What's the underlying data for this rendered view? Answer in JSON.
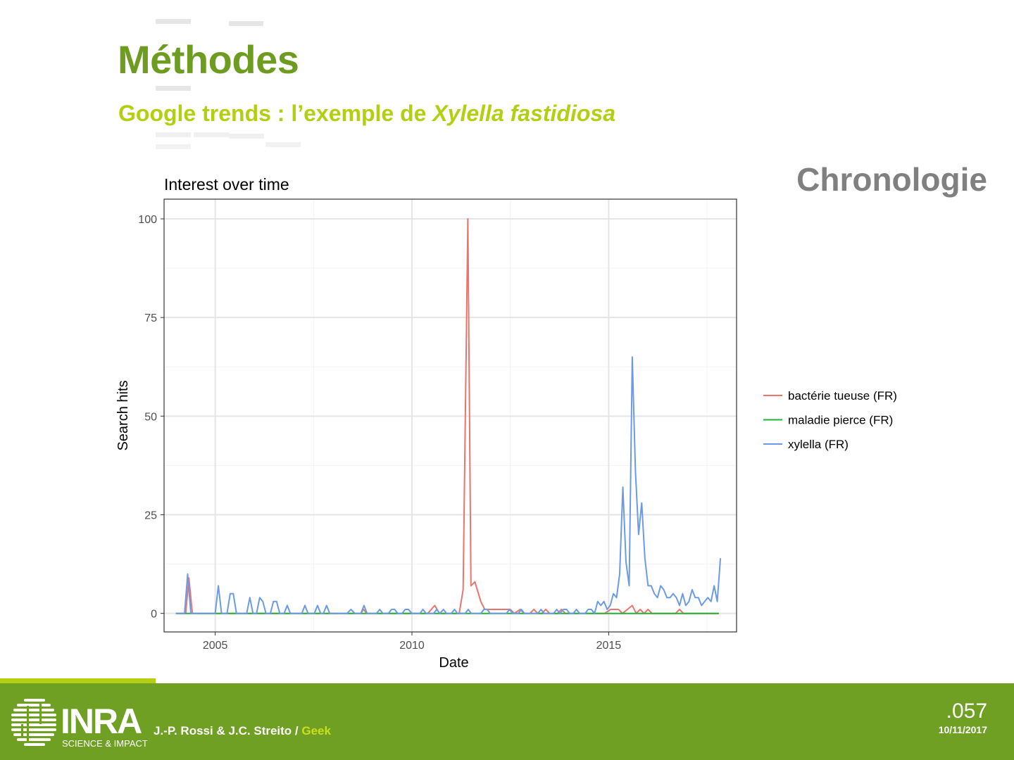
{
  "slide": {
    "title": "Méthodes",
    "subtitle_plain": "Google trends : l’exemple de ",
    "subtitle_italic": "Xylella fastidiosa",
    "section_label": "Chronologie"
  },
  "footer": {
    "logo_text": "INRA",
    "logo_tagline": "SCIENCE & IMPACT",
    "authors": "J.-P. Rossi & J.C. Streito / ",
    "tag": "Geek",
    "page_number": ".057",
    "date": "10/11/2017"
  },
  "colors": {
    "title": "#6e9c21",
    "subtitle": "#b4cf12",
    "footer": "#6f9f23",
    "series_bacterie": "#e8766e",
    "series_maladie": "#22b33a",
    "series_xylella": "#6b9be6"
  },
  "chart_data": {
    "type": "line",
    "title": "Interest over time",
    "xlabel": "Date",
    "ylabel": "Search hits",
    "xlim": [
      2003.7,
      2018.25
    ],
    "ylim": [
      -4.7,
      105
    ],
    "x_ticks": [
      2005,
      2010,
      2015
    ],
    "y_ticks": [
      0,
      25,
      50,
      75,
      100
    ],
    "grid": true,
    "legend_position": "right",
    "series": [
      {
        "name": "bactérie tueuse (FR)",
        "color": "#e8766e",
        "points": [
          [
            2004.0,
            0
          ],
          [
            2004.25,
            0
          ],
          [
            2004.33,
            9
          ],
          [
            2004.42,
            0
          ],
          [
            2008.7,
            0
          ],
          [
            2008.77,
            1
          ],
          [
            2008.85,
            0
          ],
          [
            2010.4,
            0
          ],
          [
            2010.58,
            2
          ],
          [
            2010.7,
            0
          ],
          [
            2011.2,
            0
          ],
          [
            2011.3,
            6
          ],
          [
            2011.42,
            100
          ],
          [
            2011.5,
            7
          ],
          [
            2011.6,
            8
          ],
          [
            2011.75,
            3
          ],
          [
            2011.85,
            1
          ],
          [
            2012.5,
            1
          ],
          [
            2012.6,
            0
          ],
          [
            2012.75,
            1
          ],
          [
            2012.85,
            0
          ],
          [
            2013.0,
            0
          ],
          [
            2013.1,
            1
          ],
          [
            2013.2,
            0
          ],
          [
            2013.3,
            0
          ],
          [
            2013.4,
            1
          ],
          [
            2013.5,
            0
          ],
          [
            2013.7,
            0
          ],
          [
            2013.8,
            1
          ],
          [
            2013.9,
            0
          ],
          [
            2014.9,
            0
          ],
          [
            2015.05,
            1
          ],
          [
            2015.25,
            1
          ],
          [
            2015.35,
            0
          ],
          [
            2015.6,
            2
          ],
          [
            2015.7,
            0
          ],
          [
            2015.8,
            1
          ],
          [
            2015.9,
            0
          ],
          [
            2016.0,
            1
          ],
          [
            2016.1,
            0
          ],
          [
            2016.7,
            0
          ],
          [
            2016.8,
            1
          ],
          [
            2016.9,
            0
          ],
          [
            2017.8,
            0
          ]
        ]
      },
      {
        "name": "maladie pierce (FR)",
        "color": "#22b33a",
        "points": [
          [
            2004.0,
            0
          ],
          [
            2017.8,
            0
          ]
        ]
      },
      {
        "name": "xylella (FR)",
        "color": "#6b9be6",
        "points": [
          [
            2004.0,
            0
          ],
          [
            2004.22,
            0
          ],
          [
            2004.3,
            10
          ],
          [
            2004.38,
            0
          ],
          [
            2005.0,
            0
          ],
          [
            2005.08,
            7
          ],
          [
            2005.16,
            0
          ],
          [
            2005.3,
            0
          ],
          [
            2005.38,
            5
          ],
          [
            2005.46,
            5
          ],
          [
            2005.54,
            0
          ],
          [
            2005.8,
            0
          ],
          [
            2005.88,
            4
          ],
          [
            2005.96,
            0
          ],
          [
            2006.05,
            0
          ],
          [
            2006.13,
            4
          ],
          [
            2006.21,
            3
          ],
          [
            2006.29,
            0
          ],
          [
            2006.4,
            0
          ],
          [
            2006.48,
            3
          ],
          [
            2006.56,
            3
          ],
          [
            2006.64,
            0
          ],
          [
            2006.75,
            0
          ],
          [
            2006.83,
            2
          ],
          [
            2006.91,
            0
          ],
          [
            2007.2,
            0
          ],
          [
            2007.28,
            2
          ],
          [
            2007.36,
            0
          ],
          [
            2007.52,
            0
          ],
          [
            2007.6,
            2
          ],
          [
            2007.68,
            0
          ],
          [
            2007.75,
            0
          ],
          [
            2007.83,
            2
          ],
          [
            2007.91,
            0
          ],
          [
            2008.35,
            0
          ],
          [
            2008.45,
            1
          ],
          [
            2008.55,
            0
          ],
          [
            2008.7,
            0
          ],
          [
            2008.78,
            2
          ],
          [
            2008.86,
            0
          ],
          [
            2009.1,
            0
          ],
          [
            2009.18,
            1
          ],
          [
            2009.26,
            0
          ],
          [
            2009.4,
            0
          ],
          [
            2009.48,
            1
          ],
          [
            2009.56,
            1
          ],
          [
            2009.64,
            0
          ],
          [
            2009.75,
            0
          ],
          [
            2009.83,
            1
          ],
          [
            2009.91,
            1
          ],
          [
            2010.0,
            0
          ],
          [
            2010.2,
            0
          ],
          [
            2010.28,
            1
          ],
          [
            2010.36,
            0
          ],
          [
            2010.55,
            0
          ],
          [
            2010.63,
            1
          ],
          [
            2010.71,
            0
          ],
          [
            2010.8,
            1
          ],
          [
            2010.88,
            0
          ],
          [
            2011.0,
            0
          ],
          [
            2011.08,
            1
          ],
          [
            2011.16,
            0
          ],
          [
            2011.35,
            0
          ],
          [
            2011.43,
            1
          ],
          [
            2011.51,
            0
          ],
          [
            2011.75,
            0
          ],
          [
            2011.83,
            1
          ],
          [
            2011.91,
            1
          ],
          [
            2011.99,
            0
          ],
          [
            2012.4,
            0
          ],
          [
            2012.48,
            1
          ],
          [
            2012.56,
            0
          ],
          [
            2012.7,
            0
          ],
          [
            2012.78,
            1
          ],
          [
            2012.86,
            0
          ],
          [
            2013.2,
            0
          ],
          [
            2013.28,
            1
          ],
          [
            2013.36,
            0
          ],
          [
            2013.6,
            0
          ],
          [
            2013.68,
            1
          ],
          [
            2013.76,
            0
          ],
          [
            2013.85,
            1
          ],
          [
            2013.93,
            1
          ],
          [
            2014.01,
            0
          ],
          [
            2014.1,
            0
          ],
          [
            2014.18,
            1
          ],
          [
            2014.26,
            0
          ],
          [
            2014.4,
            0
          ],
          [
            2014.48,
            1
          ],
          [
            2014.56,
            1
          ],
          [
            2014.64,
            0
          ],
          [
            2014.72,
            3
          ],
          [
            2014.8,
            2
          ],
          [
            2014.88,
            3
          ],
          [
            2014.96,
            1
          ],
          [
            2015.04,
            2
          ],
          [
            2015.12,
            5
          ],
          [
            2015.2,
            4
          ],
          [
            2015.28,
            10
          ],
          [
            2015.36,
            32
          ],
          [
            2015.44,
            13
          ],
          [
            2015.52,
            7
          ],
          [
            2015.6,
            65
          ],
          [
            2015.68,
            36
          ],
          [
            2015.76,
            20
          ],
          [
            2015.84,
            28
          ],
          [
            2015.92,
            14
          ],
          [
            2016.0,
            7
          ],
          [
            2016.08,
            7
          ],
          [
            2016.16,
            5
          ],
          [
            2016.24,
            4
          ],
          [
            2016.32,
            7
          ],
          [
            2016.4,
            6
          ],
          [
            2016.48,
            4
          ],
          [
            2016.56,
            4
          ],
          [
            2016.64,
            5
          ],
          [
            2016.72,
            4
          ],
          [
            2016.8,
            2
          ],
          [
            2016.88,
            5
          ],
          [
            2016.96,
            2
          ],
          [
            2017.04,
            3
          ],
          [
            2017.12,
            6
          ],
          [
            2017.2,
            4
          ],
          [
            2017.28,
            4
          ],
          [
            2017.36,
            2
          ],
          [
            2017.44,
            3
          ],
          [
            2017.52,
            4
          ],
          [
            2017.6,
            3
          ],
          [
            2017.68,
            7
          ],
          [
            2017.76,
            3
          ],
          [
            2017.84,
            14
          ]
        ]
      }
    ]
  }
}
